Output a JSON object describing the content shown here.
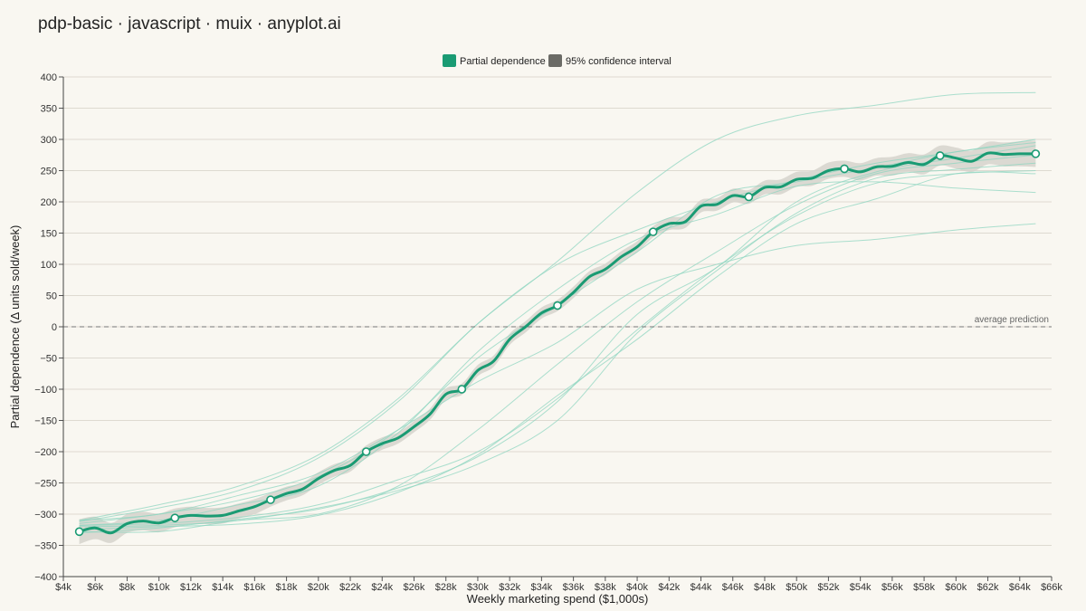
{
  "title": "pdp-basic · javascript · muix · anyplot.ai",
  "chart_data": {
    "type": "line",
    "xlabel": "Weekly marketing spend ($1,000s)",
    "ylabel": "Partial dependence (Δ units sold/week)",
    "xlim": [
      4,
      66
    ],
    "ylim": [
      -400,
      400
    ],
    "x_ticks": [
      "$4k",
      "$6k",
      "$8k",
      "$10k",
      "$12k",
      "$14k",
      "$16k",
      "$18k",
      "$20k",
      "$22k",
      "$24k",
      "$26k",
      "$28k",
      "$30k",
      "$32k",
      "$34k",
      "$36k",
      "$38k",
      "$40k",
      "$42k",
      "$44k",
      "$46k",
      "$48k",
      "$50k",
      "$52k",
      "$54k",
      "$56k",
      "$58k",
      "$60k",
      "$62k",
      "$64k",
      "$66k"
    ],
    "y_ticks": [
      "400",
      "350",
      "300",
      "250",
      "200",
      "150",
      "100",
      "50",
      "0",
      "−50",
      "−100",
      "−150",
      "−200",
      "−250",
      "−300",
      "−350",
      "−400"
    ],
    "legend": {
      "position": "top-center",
      "items": [
        {
          "label": "Partial dependence",
          "color": "#1a9b73"
        },
        {
          "label": "95% confidence interval",
          "color": "#6b6b66"
        }
      ]
    },
    "reference_line": {
      "y": 0,
      "label": "average prediction"
    },
    "grid": true,
    "colors": {
      "pd": "#1a9b73",
      "ice": "#8fd6c0",
      "band": "#d6d3cc"
    },
    "series": [
      {
        "name": "Partial dependence",
        "x": [
          5,
          6,
          7,
          8,
          9,
          10,
          11,
          12,
          13,
          14,
          15,
          16,
          17,
          18,
          19,
          20,
          21,
          22,
          23,
          24,
          25,
          26,
          27,
          28,
          29,
          30,
          31,
          32,
          33,
          34,
          35,
          36,
          37,
          38,
          39,
          40,
          41,
          42,
          43,
          44,
          45,
          46,
          47,
          48,
          49,
          50,
          51,
          52,
          53,
          54,
          55,
          56,
          57,
          58,
          59,
          60,
          61,
          62,
          63,
          64,
          65
        ],
        "y": [
          -328,
          -322,
          -330,
          -315,
          -311,
          -314,
          -306,
          -302,
          -303,
          -302,
          -295,
          -288,
          -277,
          -267,
          -260,
          -243,
          -230,
          -222,
          -200,
          -187,
          -178,
          -160,
          -140,
          -108,
          -100,
          -70,
          -55,
          -20,
          0,
          22,
          34,
          55,
          80,
          92,
          112,
          128,
          152,
          165,
          168,
          193,
          196,
          210,
          208,
          223,
          224,
          236,
          238,
          250,
          253,
          248,
          256,
          257,
          263,
          260,
          274,
          270,
          265,
          278,
          276,
          277,
          277
        ],
        "markers_x": [
          5,
          11,
          17,
          23,
          29,
          35,
          41,
          47,
          53,
          59,
          65
        ]
      }
    ],
    "confidence_half_width": [
      20,
      18,
      16,
      15,
      15,
      15,
      15,
      14,
      13,
      13,
      12,
      12,
      11,
      11,
      10,
      10,
      10,
      10,
      10,
      10,
      9,
      9,
      9,
      9,
      9,
      9,
      9,
      9,
      9,
      9,
      9,
      9,
      9,
      9,
      9,
      9,
      9,
      10,
      10,
      10,
      10,
      11,
      11,
      11,
      12,
      12,
      12,
      13,
      13,
      14,
      14,
      15,
      15,
      16,
      16,
      17,
      17,
      18,
      19,
      20,
      21
    ],
    "ice_lines": [
      {
        "x": [
          5,
          10,
          15,
          20,
          25,
          30,
          35,
          40,
          45,
          50,
          55,
          60,
          65
        ],
        "y": [
          -328,
          -328,
          -310,
          -300,
          -255,
          -165,
          -60,
          40,
          120,
          195,
          245,
          262,
          275
        ]
      },
      {
        "x": [
          5,
          10,
          15,
          20,
          25,
          30,
          35,
          40,
          45,
          50,
          55,
          60,
          65
        ],
        "y": [
          -325,
          -320,
          -316,
          -302,
          -265,
          -205,
          -110,
          -20,
          80,
          165,
          205,
          245,
          245
        ]
      },
      {
        "x": [
          5,
          10,
          15,
          20,
          25,
          30,
          35,
          40,
          45,
          50,
          55,
          60,
          65
        ],
        "y": [
          -320,
          -318,
          -310,
          -290,
          -262,
          -220,
          -150,
          -10,
          90,
          182,
          238,
          252,
          262
        ]
      },
      {
        "x": [
          5,
          10,
          15,
          20,
          25,
          30,
          35,
          40,
          45,
          50,
          55,
          60,
          65
        ],
        "y": [
          -318,
          -315,
          -305,
          -285,
          -245,
          -200,
          -115,
          -5,
          95,
          178,
          230,
          245,
          250
        ]
      },
      {
        "x": [
          5,
          10,
          15,
          20,
          25,
          30,
          35,
          40,
          45,
          50,
          55,
          60,
          65
        ],
        "y": [
          -330,
          -322,
          -308,
          -292,
          -258,
          -208,
          -120,
          20,
          95,
          200,
          248,
          270,
          290
        ]
      },
      {
        "x": [
          5,
          10,
          15,
          20,
          25,
          30,
          35,
          40,
          45,
          50,
          55,
          60,
          65
        ],
        "y": [
          -318,
          -310,
          -285,
          -255,
          -170,
          -40,
          60,
          140,
          180,
          225,
          232,
          222,
          215
        ]
      },
      {
        "x": [
          5,
          10,
          15,
          20,
          25,
          30,
          35,
          40,
          45,
          50,
          55,
          60,
          65
        ],
        "y": [
          -315,
          -300,
          -278,
          -240,
          -165,
          -50,
          35,
          120,
          210,
          232,
          255,
          280,
          295
        ]
      },
      {
        "x": [
          5,
          10,
          15,
          20,
          25,
          30,
          35,
          40,
          45,
          50,
          55,
          60,
          65
        ],
        "y": [
          -312,
          -290,
          -262,
          -210,
          -120,
          5,
          100,
          155,
          200,
          235,
          262,
          280,
          300
        ]
      },
      {
        "x": [
          5,
          10,
          15,
          20,
          25,
          30,
          35,
          40,
          45,
          50,
          55,
          60,
          65
        ],
        "y": [
          -310,
          -300,
          -270,
          -235,
          -165,
          -88,
          -25,
          60,
          100,
          130,
          140,
          155,
          165
        ]
      },
      {
        "x": [
          5,
          10,
          15,
          20,
          25,
          30,
          35,
          40,
          45,
          50,
          55,
          60,
          65
        ],
        "y": [
          -310,
          -285,
          -255,
          -205,
          -115,
          5,
          105,
          215,
          300,
          338,
          355,
          372,
          375
        ]
      }
    ]
  }
}
